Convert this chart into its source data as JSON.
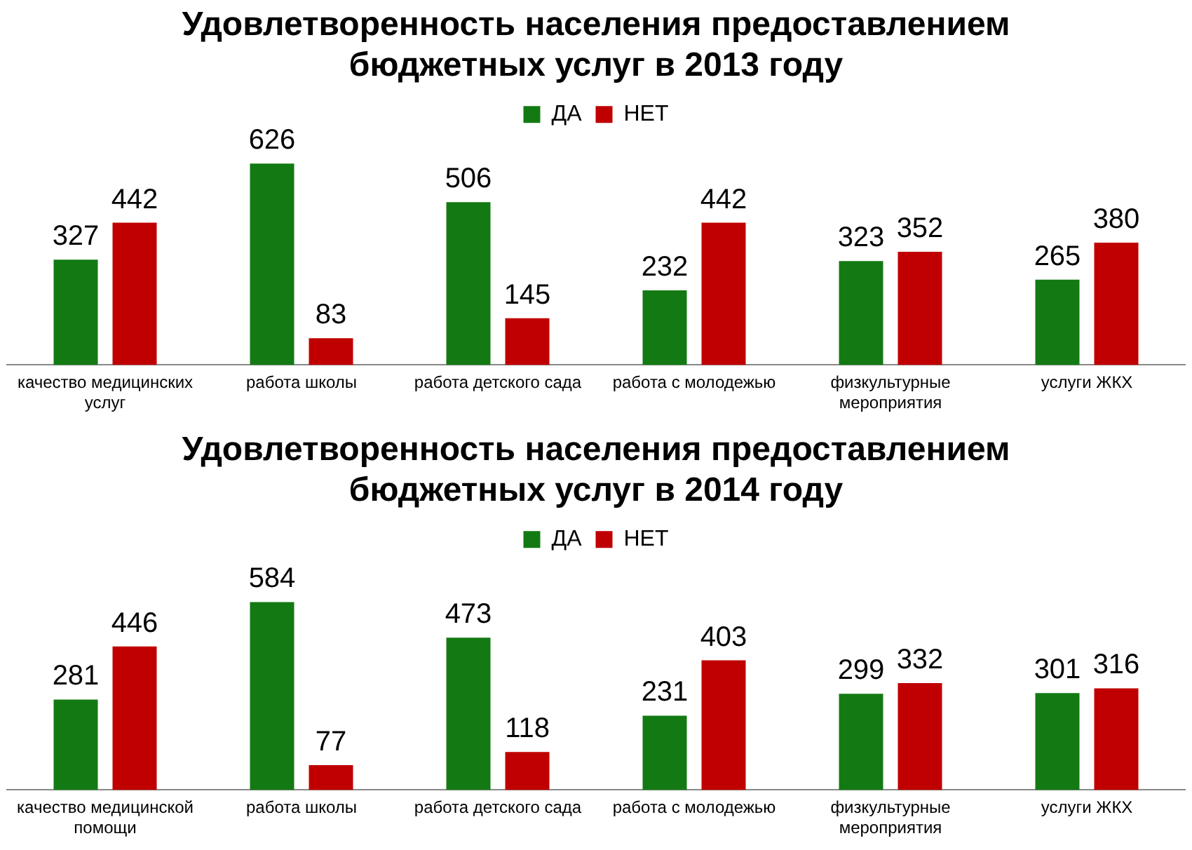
{
  "chart_data": [
    {
      "type": "bar",
      "title": "Удовлетворенность населения предоставлением бюджетных услуг в 2013 году",
      "categories": [
        "качество медицинских услуг",
        "работа школы",
        "работа детского сада",
        "работа с молодежью",
        "физкультурные мероприятия",
        "услуги ЖКХ"
      ],
      "series": [
        {
          "name": "ДА",
          "color": "#137a13",
          "values": [
            327,
            626,
            506,
            232,
            323,
            265
          ]
        },
        {
          "name": "НЕТ",
          "color": "#c00000",
          "values": [
            442,
            83,
            145,
            442,
            352,
            380
          ]
        }
      ],
      "data_labels": true,
      "legend": "top",
      "grid": false
    },
    {
      "type": "bar",
      "title": "Удовлетворенность населения предоставлением бюджетных услуг в 2014 году",
      "categories": [
        "качество медицинской помощи",
        "работа школы",
        "работа детского сада",
        "работа с молодежью",
        "физкультурные мероприятия",
        "услуги ЖКХ"
      ],
      "series": [
        {
          "name": "ДА",
          "color": "#137a13",
          "values": [
            281,
            584,
            473,
            231,
            299,
            301
          ]
        },
        {
          "name": "НЕТ",
          "color": "#c00000",
          "values": [
            446,
            77,
            118,
            403,
            332,
            316
          ]
        }
      ],
      "data_labels": true,
      "legend": "top",
      "grid": false
    }
  ]
}
